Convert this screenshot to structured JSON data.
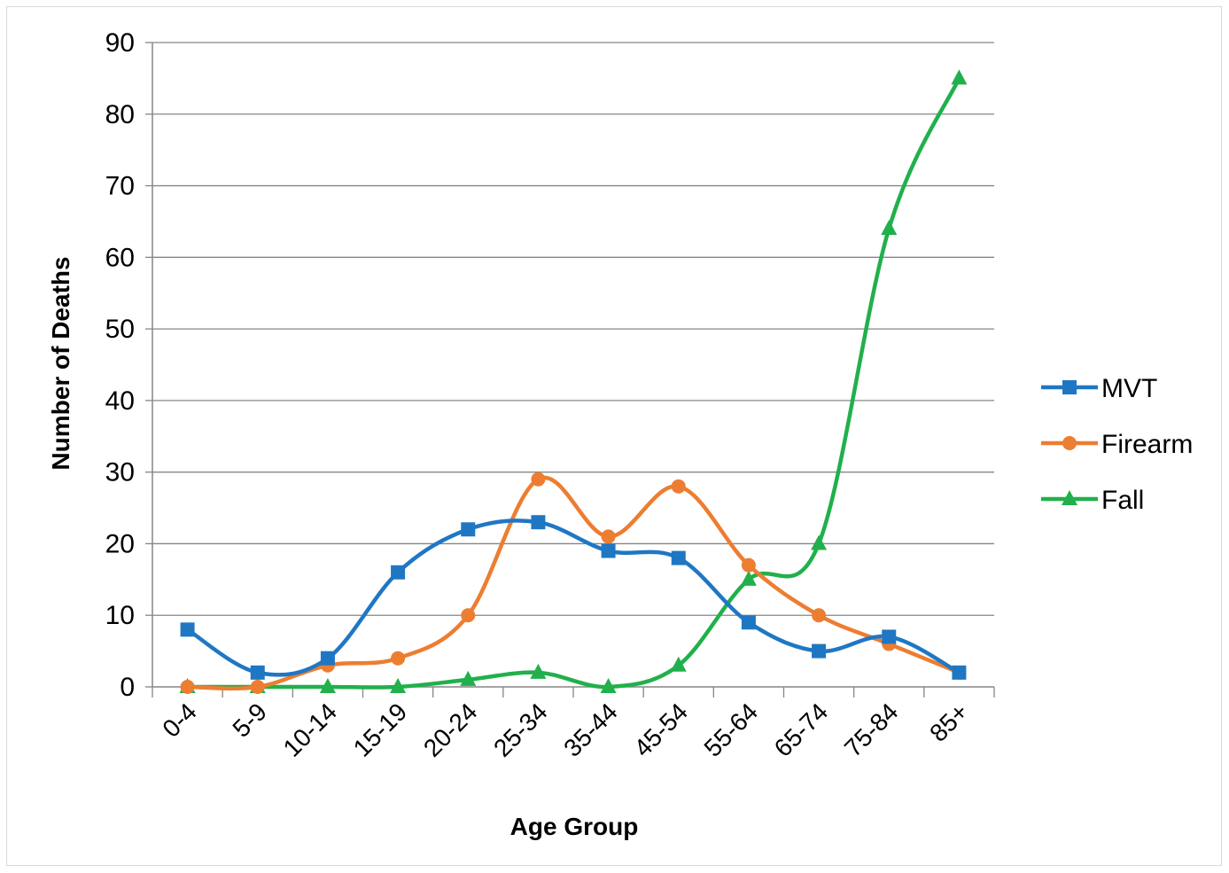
{
  "chart_data": {
    "type": "line",
    "title": "",
    "xlabel": "Age Group",
    "ylabel": "Number of Deaths",
    "categories": [
      "0-4",
      "5-9",
      "10-14",
      "15-19",
      "20-24",
      "25-34",
      "35-44",
      "45-54",
      "55-64",
      "65-74",
      "75-84",
      "85+"
    ],
    "ylim": [
      0,
      90
    ],
    "yticks": [
      0,
      10,
      20,
      30,
      40,
      50,
      60,
      70,
      80,
      90
    ],
    "grid": "horizontal",
    "legend_position": "right",
    "smoothed": true,
    "series": [
      {
        "name": "MVT",
        "color": "#1f77c4",
        "marker": "square",
        "values": [
          8,
          2,
          4,
          16,
          22,
          23,
          19,
          18,
          9,
          5,
          7,
          2
        ]
      },
      {
        "name": "Firearm",
        "color": "#ed7d31",
        "marker": "circle",
        "values": [
          0,
          0,
          3,
          4,
          10,
          29,
          21,
          28,
          17,
          10,
          6,
          2
        ]
      },
      {
        "name": "Fall",
        "color": "#21b04b",
        "marker": "triangle",
        "values": [
          0,
          0,
          0,
          0,
          1,
          2,
          0,
          3,
          15,
          20,
          64,
          85
        ]
      }
    ]
  }
}
